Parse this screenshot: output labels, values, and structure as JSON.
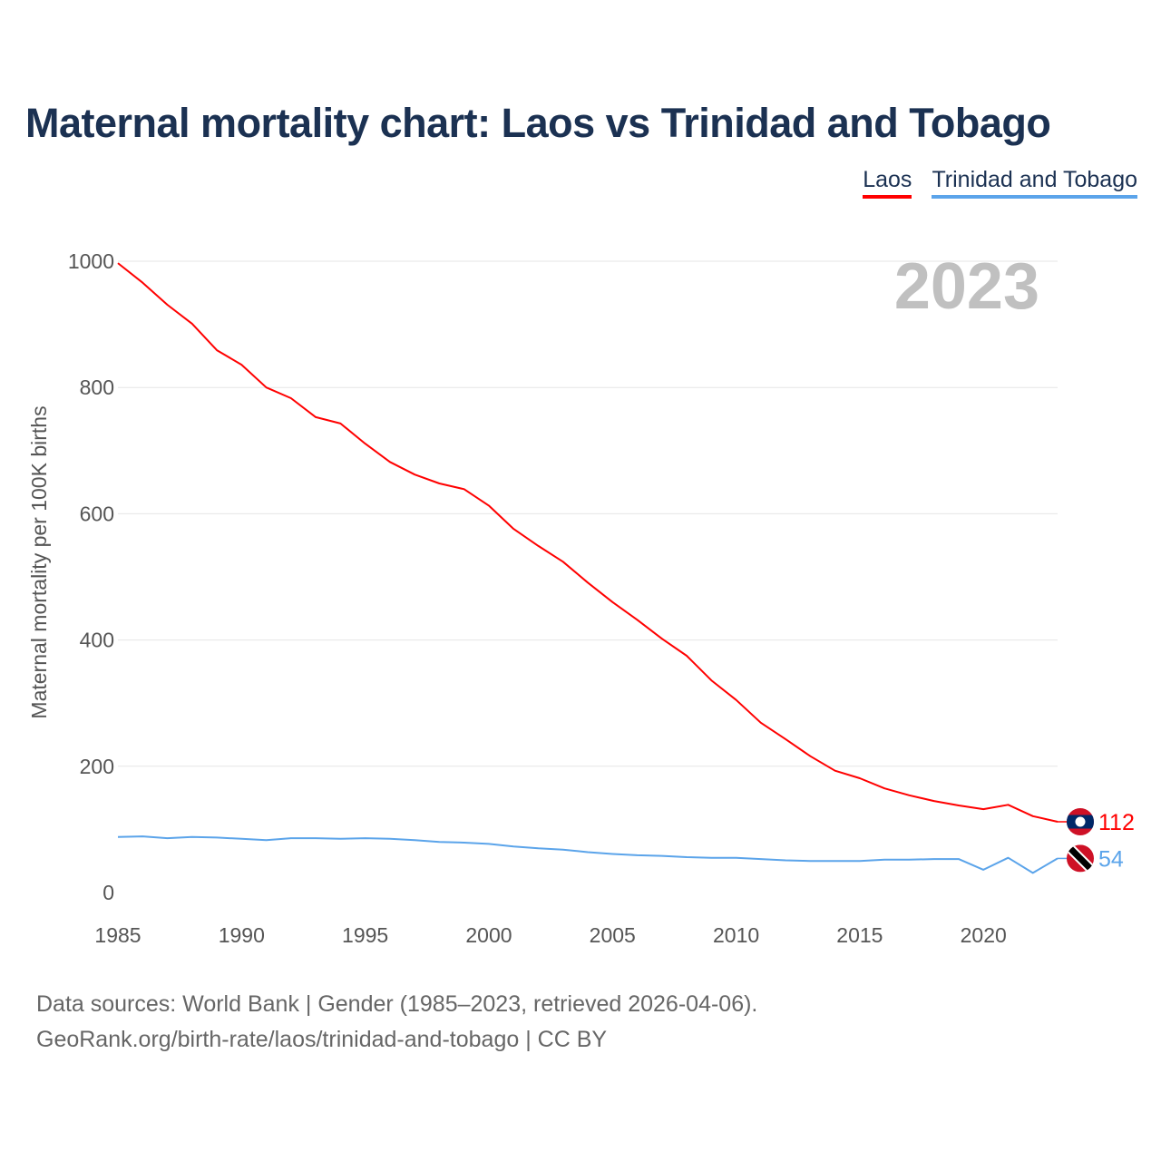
{
  "chart_data": {
    "type": "line",
    "title": "Maternal mortality chart: Laos vs Trinidad and Tobago",
    "ylabel": "Maternal mortality per 100K births",
    "xlabel": "",
    "ylim": [
      0,
      1000
    ],
    "xlim": [
      1985,
      2023
    ],
    "yticks": [
      0,
      200,
      400,
      600,
      800,
      1000
    ],
    "xticks": [
      1985,
      1990,
      1995,
      2000,
      2005,
      2010,
      2015,
      2020
    ],
    "grid": true,
    "legend_position": "top-right",
    "year_label": "2023",
    "x": [
      1985,
      1986,
      1987,
      1988,
      1989,
      1990,
      1991,
      1992,
      1993,
      1994,
      1995,
      1996,
      1997,
      1998,
      1999,
      2000,
      2001,
      2002,
      2003,
      2004,
      2005,
      2006,
      2007,
      2008,
      2009,
      2010,
      2011,
      2012,
      2013,
      2014,
      2015,
      2016,
      2017,
      2018,
      2019,
      2020,
      2021,
      2022,
      2023
    ],
    "series": [
      {
        "name": "Laos",
        "color": "#ff0000",
        "end_label": "112",
        "flag": "laos-flag",
        "values": [
          997,
          966,
          931,
          901,
          859,
          836,
          800,
          783,
          753,
          743,
          711,
          682,
          662,
          648,
          639,
          613,
          576,
          549,
          524,
          491,
          460,
          432,
          402,
          375,
          336,
          305,
          269,
          243,
          216,
          193,
          181,
          165,
          154,
          145,
          138,
          132,
          139,
          121,
          112
        ]
      },
      {
        "name": "Trinidad and Tobago",
        "color": "#5ba4ea",
        "end_label": "54",
        "flag": "trinidad-and-tobago-flag",
        "values": [
          88,
          89,
          86,
          88,
          87,
          85,
          83,
          86,
          86,
          85,
          86,
          85,
          83,
          80,
          79,
          77,
          73,
          70,
          68,
          64,
          61,
          59,
          58,
          56,
          55,
          55,
          53,
          51,
          50,
          50,
          50,
          52,
          52,
          53,
          53,
          36,
          55,
          31,
          54
        ]
      }
    ]
  },
  "footer": {
    "line1": "Data sources: World Bank | Gender (1985–2023, retrieved 2026-04-06).",
    "line2": "GeoRank.org/birth-rate/laos/trinidad-and-tobago | CC BY"
  }
}
